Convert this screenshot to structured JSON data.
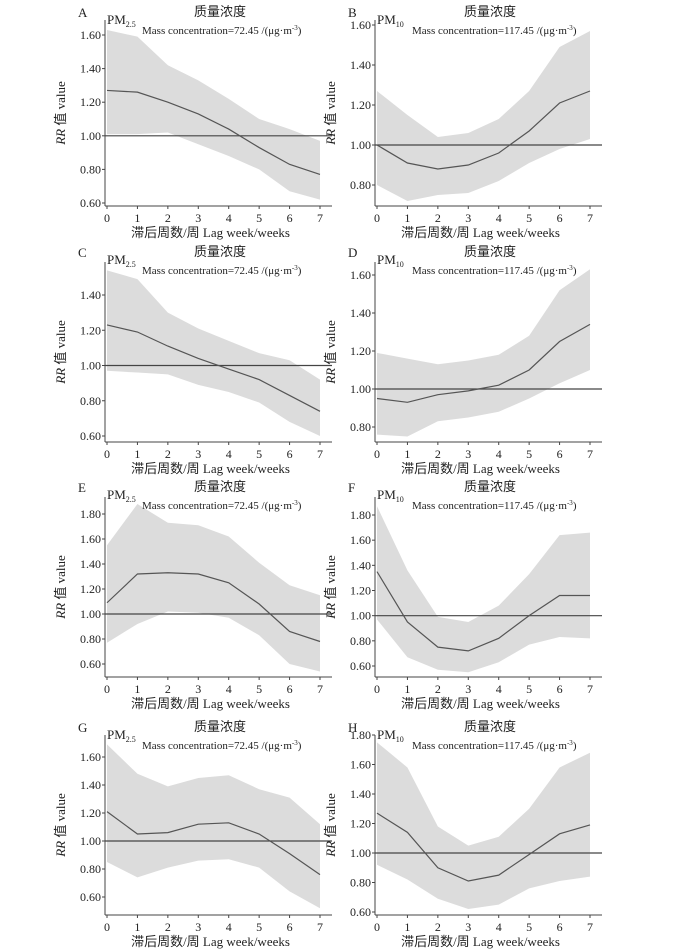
{
  "chart_data": [
    {
      "type": "line",
      "panel": "A",
      "pollutant": "PM",
      "pollutant_sub": "2.5",
      "title": "质量浓度",
      "conc_text": "Mass concentration=72.45 /(μg·m",
      "conc_sup": "-3",
      "conc_close": ")",
      "xlabel": "滞后周数/周 Lag week/weeks",
      "ylabel_italic": "RR",
      "ylabel_rest": " 值  value",
      "x": [
        0,
        1,
        2,
        3,
        4,
        5,
        6,
        7
      ],
      "yticks": [
        "0.60",
        "0.80",
        "1.00",
        "1.20",
        "1.40",
        "1.60"
      ],
      "ylim": [
        0.6,
        1.6
      ],
      "reference": 1.0,
      "series": [
        {
          "name": "RR",
          "values": [
            1.27,
            1.26,
            1.2,
            1.13,
            1.04,
            0.93,
            0.83,
            0.77
          ]
        },
        {
          "name": "upper",
          "values": [
            1.63,
            1.59,
            1.42,
            1.33,
            1.22,
            1.1,
            1.04,
            0.97
          ]
        },
        {
          "name": "lower",
          "values": [
            1.01,
            1.01,
            1.02,
            0.95,
            0.88,
            0.8,
            0.67,
            0.62
          ]
        }
      ]
    },
    {
      "type": "line",
      "panel": "B",
      "pollutant": "PM",
      "pollutant_sub": "10",
      "title": "质量浓度",
      "conc_text": "Mass concentration=117.45 /(μg·m",
      "conc_sup": "-3",
      "conc_close": ")",
      "xlabel": "滞后周数/周 Lag week/weeks",
      "ylabel_italic": "RR",
      "ylabel_rest": " 值  value",
      "x": [
        0,
        1,
        2,
        3,
        4,
        5,
        6,
        7
      ],
      "yticks": [
        "0.80",
        "1.00",
        "1.20",
        "1.40",
        "1.60"
      ],
      "ylim": [
        0.8,
        1.6
      ],
      "reference": 1.0,
      "series": [
        {
          "name": "RR",
          "values": [
            1.0,
            0.91,
            0.88,
            0.9,
            0.96,
            1.07,
            1.21,
            1.27
          ]
        },
        {
          "name": "upper",
          "values": [
            1.27,
            1.15,
            1.04,
            1.06,
            1.13,
            1.27,
            1.49,
            1.57
          ]
        },
        {
          "name": "lower",
          "values": [
            0.8,
            0.72,
            0.75,
            0.76,
            0.82,
            0.91,
            0.98,
            1.03
          ]
        }
      ]
    },
    {
      "type": "line",
      "panel": "C",
      "pollutant": "PM",
      "pollutant_sub": "2.5",
      "title": "质量浓度",
      "conc_text": "Mass concentration=72.45  /(μg·m",
      "conc_sup": "-3",
      "conc_close": ")",
      "xlabel": "滞后周数/周 Lag week/weeks",
      "ylabel_italic": "RR",
      "ylabel_rest": " 值  value",
      "x": [
        0,
        1,
        2,
        3,
        4,
        5,
        6,
        7
      ],
      "yticks": [
        "0.60",
        "0.80",
        "1.00",
        "1.20",
        "1.40"
      ],
      "ylim": [
        0.6,
        1.4
      ],
      "reference": 1.0,
      "series": [
        {
          "name": "RR",
          "values": [
            1.23,
            1.19,
            1.11,
            1.04,
            0.98,
            0.92,
            0.83,
            0.74
          ]
        },
        {
          "name": "upper",
          "values": [
            1.54,
            1.49,
            1.3,
            1.21,
            1.14,
            1.07,
            1.03,
            0.92
          ]
        },
        {
          "name": "lower",
          "values": [
            0.97,
            0.96,
            0.95,
            0.89,
            0.85,
            0.79,
            0.68,
            0.6
          ]
        }
      ]
    },
    {
      "type": "line",
      "panel": "D",
      "pollutant": "PM",
      "pollutant_sub": "10",
      "title": "质量浓度",
      "conc_text": "Mass concentration=117.45 /(μg·m",
      "conc_sup": "-3",
      "conc_close": ")",
      "xlabel": "滞后周数/周 Lag week/weeks",
      "ylabel_italic": "RR",
      "ylabel_rest": " 值  value",
      "x": [
        0,
        1,
        2,
        3,
        4,
        5,
        6,
        7
      ],
      "yticks": [
        "0.80",
        "1.00",
        "1.20",
        "1.40",
        "1.60"
      ],
      "ylim": [
        0.8,
        1.6
      ],
      "reference": 1.0,
      "series": [
        {
          "name": "RR",
          "values": [
            0.95,
            0.93,
            0.97,
            0.99,
            1.02,
            1.1,
            1.25,
            1.34
          ]
        },
        {
          "name": "upper",
          "values": [
            1.19,
            1.16,
            1.13,
            1.15,
            1.18,
            1.28,
            1.52,
            1.63
          ]
        },
        {
          "name": "lower",
          "values": [
            0.76,
            0.75,
            0.83,
            0.85,
            0.88,
            0.95,
            1.03,
            1.1
          ]
        }
      ]
    },
    {
      "type": "line",
      "panel": "E",
      "pollutant": "PM",
      "pollutant_sub": "2.5",
      "title": "质量浓度",
      "conc_text": "Mass concentration=72.45 /(μg·m",
      "conc_sup": "-3",
      "conc_close": ")",
      "xlabel": "滞后周数/周 Lag week/weeks",
      "ylabel_italic": "RR",
      "ylabel_rest": " 值  value",
      "x": [
        0,
        1,
        2,
        3,
        4,
        5,
        6,
        7
      ],
      "yticks": [
        "0.60",
        "0.80",
        "1.00",
        "1.20",
        "1.40",
        "1.60",
        "1.80"
      ],
      "ylim": [
        0.6,
        1.8
      ],
      "reference": 1.0,
      "series": [
        {
          "name": "RR",
          "values": [
            1.09,
            1.32,
            1.33,
            1.32,
            1.25,
            1.08,
            0.86,
            0.78
          ]
        },
        {
          "name": "upper",
          "values": [
            1.55,
            1.88,
            1.73,
            1.71,
            1.62,
            1.41,
            1.23,
            1.15
          ]
        },
        {
          "name": "lower",
          "values": [
            0.77,
            0.92,
            1.02,
            1.01,
            0.97,
            0.83,
            0.6,
            0.54
          ]
        }
      ]
    },
    {
      "type": "line",
      "panel": "F",
      "pollutant": "PM",
      "pollutant_sub": "10",
      "title": "质量浓度",
      "conc_text": "Mass concentration=117.45 /(μg·m",
      "conc_sup": "-3",
      "conc_close": ")",
      "xlabel": "滞后周数/周 Lag week/weeks",
      "ylabel_italic": "RR",
      "ylabel_rest": " 值  value",
      "x": [
        0,
        1,
        2,
        3,
        4,
        5,
        6,
        7
      ],
      "yticks": [
        "0.60",
        "0.80",
        "1.00",
        "1.20",
        "1.40",
        "1.60",
        "1.80"
      ],
      "ylim": [
        0.6,
        1.8
      ],
      "reference": 1.0,
      "series": [
        {
          "name": "RR",
          "values": [
            1.35,
            0.95,
            0.75,
            0.72,
            0.82,
            1.0,
            1.16,
            1.16
          ]
        },
        {
          "name": "upper",
          "values": [
            1.87,
            1.36,
            0.99,
            0.95,
            1.08,
            1.33,
            1.64,
            1.66
          ]
        },
        {
          "name": "lower",
          "values": [
            0.97,
            0.67,
            0.57,
            0.55,
            0.63,
            0.77,
            0.83,
            0.82
          ]
        }
      ]
    },
    {
      "type": "line",
      "panel": "G",
      "pollutant": "PM",
      "pollutant_sub": "2.5",
      "title": "质量浓度",
      "conc_text": "Mass concentration=72.45  /(μg·m",
      "conc_sup": "-3",
      "conc_close": ")",
      "xlabel": "滞后周数/周 Lag week/weeks",
      "ylabel_italic": "RR",
      "ylabel_rest": " 值  value",
      "x": [
        0,
        1,
        2,
        3,
        4,
        5,
        6,
        7
      ],
      "yticks": [
        "0.60",
        "0.80",
        "1.00",
        "1.20",
        "1.40",
        "1.60"
      ],
      "ylim": [
        0.6,
        1.6
      ],
      "reference": 1.0,
      "series": [
        {
          "name": "RR",
          "values": [
            1.21,
            1.05,
            1.06,
            1.12,
            1.13,
            1.05,
            0.91,
            0.76
          ]
        },
        {
          "name": "upper",
          "values": [
            1.69,
            1.48,
            1.39,
            1.45,
            1.47,
            1.37,
            1.31,
            1.12
          ]
        },
        {
          "name": "lower",
          "values": [
            0.85,
            0.74,
            0.81,
            0.86,
            0.87,
            0.81,
            0.64,
            0.52
          ]
        }
      ]
    },
    {
      "type": "line",
      "panel": "H",
      "pollutant": "PM",
      "pollutant_sub": "10",
      "title": "质量浓度",
      "conc_text": "Mass concentration=117.45 /(μg·m",
      "conc_sup": "-3",
      "conc_close": ")",
      "xlabel": "滞后周数/周 Lag week/weeks",
      "ylabel_italic": "RR",
      "ylabel_rest": " 值  value",
      "x": [
        0,
        1,
        2,
        3,
        4,
        5,
        6,
        7
      ],
      "yticks": [
        "0.60",
        "0.80",
        "1.00",
        "1.20",
        "1.40",
        "1.60",
        "1.80"
      ],
      "ylim": [
        0.6,
        1.8
      ],
      "reference": 1.0,
      "series": [
        {
          "name": "RR",
          "values": [
            1.27,
            1.14,
            0.9,
            0.81,
            0.85,
            0.99,
            1.13,
            1.19
          ]
        },
        {
          "name": "upper",
          "values": [
            1.75,
            1.58,
            1.18,
            1.05,
            1.11,
            1.3,
            1.58,
            1.68
          ]
        },
        {
          "name": "lower",
          "values": [
            0.92,
            0.82,
            0.69,
            0.62,
            0.65,
            0.76,
            0.81,
            0.84
          ]
        }
      ]
    }
  ],
  "colors": {
    "band": "#dcdcdc",
    "line": "#555555",
    "axis": "#444444",
    "text": "#222222"
  }
}
